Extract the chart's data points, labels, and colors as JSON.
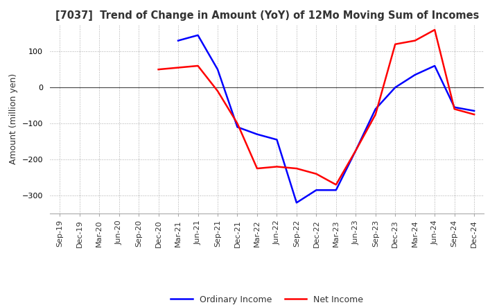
{
  "title": "[7037]  Trend of Change in Amount (YoY) of 12Mo Moving Sum of Incomes",
  "ylabel": "Amount (million yen)",
  "x_labels": [
    "Sep-19",
    "Dec-19",
    "Mar-20",
    "Jun-20",
    "Sep-20",
    "Dec-20",
    "Mar-21",
    "Jun-21",
    "Sep-21",
    "Dec-21",
    "Mar-22",
    "Jun-22",
    "Sep-22",
    "Dec-22",
    "Mar-23",
    "Jun-23",
    "Sep-23",
    "Dec-23",
    "Mar-24",
    "Jun-24",
    "Sep-24",
    "Dec-24"
  ],
  "ordinary_income": [
    null,
    null,
    null,
    null,
    null,
    null,
    130,
    145,
    50,
    -110,
    -130,
    -145,
    -320,
    -285,
    -285,
    -175,
    -60,
    0,
    35,
    60,
    -55,
    -65
  ],
  "net_income": [
    null,
    null,
    null,
    null,
    null,
    50,
    55,
    60,
    -10,
    -100,
    -225,
    -220,
    -225,
    -240,
    -270,
    -175,
    -75,
    120,
    130,
    160,
    -60,
    -75
  ],
  "ordinary_color": "#0000ff",
  "net_color": "#ff0000",
  "ylim": [
    -350,
    175
  ],
  "yticks": [
    -300,
    -200,
    -100,
    0,
    100
  ],
  "grid_color": "#aaaaaa",
  "background_color": "#ffffff",
  "title_fontsize": 10.5,
  "ylabel_fontsize": 9,
  "tick_fontsize": 8,
  "legend_fontsize": 9,
  "linewidth": 1.8
}
